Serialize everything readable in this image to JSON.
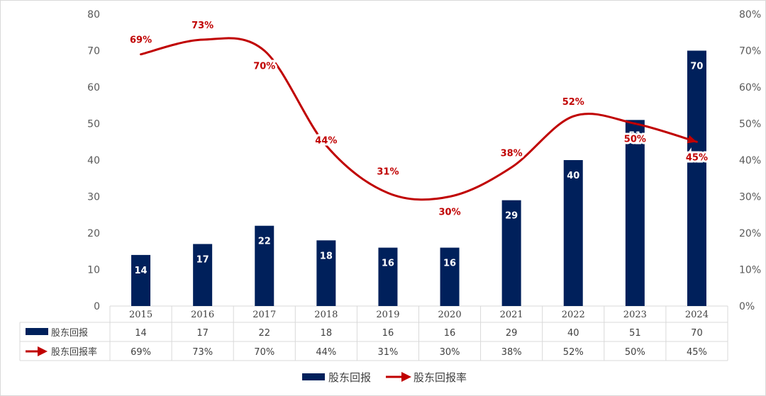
{
  "colors": {
    "bar": "#00205b",
    "line": "#c00000",
    "axis_text": "#595959",
    "grid": "#d9d9d9"
  },
  "legend": {
    "bar_series": "股东回报",
    "line_series": "股东回报率"
  },
  "chart_data": {
    "type": "bar+line",
    "categories": [
      "2015",
      "2016",
      "2017",
      "2018",
      "2019",
      "2020",
      "2021",
      "2022",
      "2023",
      "2024"
    ],
    "series": [
      {
        "name": "股东回报",
        "type": "bar",
        "axis": "left",
        "values": [
          14,
          17,
          22,
          18,
          16,
          16,
          29,
          40,
          51,
          70
        ],
        "labels": [
          "14",
          "17",
          "22",
          "18",
          "16",
          "16",
          "29",
          "40",
          "51",
          "70"
        ]
      },
      {
        "name": "股东回报率",
        "type": "line",
        "axis": "right",
        "smooth": true,
        "values": [
          69,
          73,
          70,
          44,
          31,
          30,
          38,
          52,
          50,
          45
        ],
        "labels": [
          "69%",
          "73%",
          "70%",
          "44%",
          "31%",
          "30%",
          "38%",
          "52%",
          "50%",
          "45%"
        ]
      }
    ],
    "y_left": {
      "min": 0,
      "max": 80,
      "step": 10,
      "ticks": [
        "0",
        "10",
        "20",
        "30",
        "40",
        "50",
        "60",
        "70",
        "80"
      ]
    },
    "y_right": {
      "min": 0,
      "max": 80,
      "step": 10,
      "ticks": [
        "0%",
        "10%",
        "20%",
        "30%",
        "40%",
        "50%",
        "60%",
        "70%",
        "80%"
      ]
    },
    "data_table": true,
    "grid": false,
    "legend_position": "bottom"
  }
}
